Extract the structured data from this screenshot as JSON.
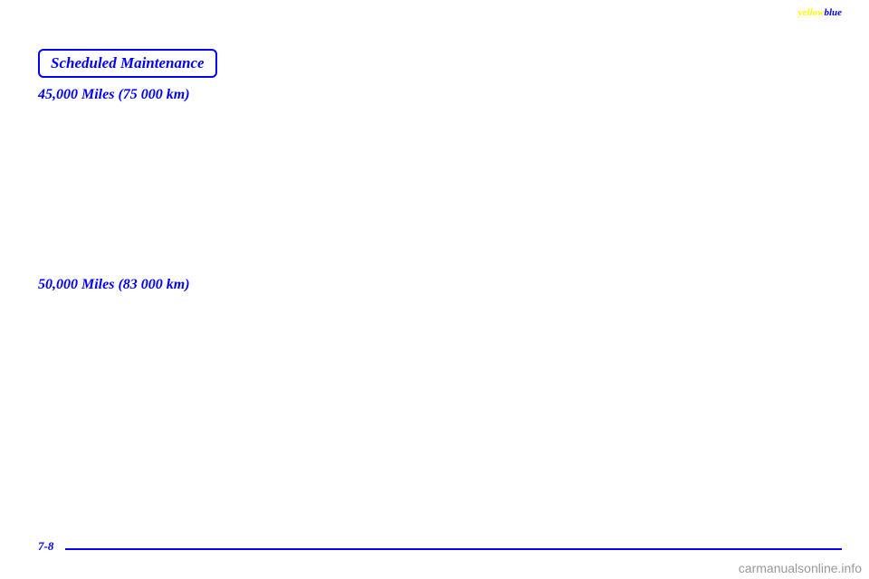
{
  "header": {
    "yellow_text": "yellow",
    "blue_text": "blue"
  },
  "title_box": {
    "text": "Scheduled Maintenance"
  },
  "sections": {
    "heading_1": "45,000 Miles (75 000 km)",
    "heading_2": "50,000 Miles (83 000 km)"
  },
  "footer": {
    "page_number": "7-8"
  },
  "watermark": "carmanualsonline.info",
  "colors": {
    "blue": "#0000ff",
    "yellow": "#ffff00",
    "background": "#ffffff",
    "watermark": "#999999"
  }
}
